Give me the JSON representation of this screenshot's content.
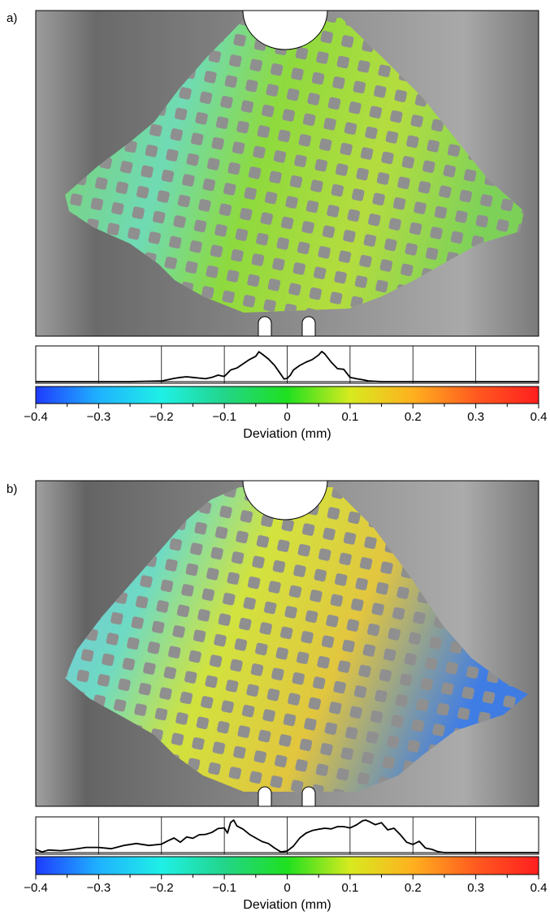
{
  "panels": [
    {
      "label": "a)",
      "axis_title": "Deviation (mm)",
      "tick_labels": [
        "−0.4",
        "−0.3",
        "−0.2",
        "−0.1",
        "0",
        "0.1",
        "0.2",
        "0.3",
        "0.4"
      ]
    },
    {
      "label": "b)",
      "axis_title": "Deviation (mm)",
      "tick_labels": [
        "−0.4",
        "−0.3",
        "−0.2",
        "−0.1",
        "0",
        "0.1",
        "0.2",
        "0.3",
        "0.4"
      ]
    }
  ],
  "colorscale": {
    "stops": [
      "#1f3bff",
      "#1fb2ff",
      "#1ff0e6",
      "#22d58a",
      "#1fe01f",
      "#d7ea1f",
      "#ffb01f",
      "#ff5a1f",
      "#ff1f1f"
    ],
    "min": -0.4,
    "max": 0.4
  },
  "chart_data": [
    {
      "type": "line",
      "description_source": "distribution histogram for panel a",
      "xlabel": "Deviation (mm)",
      "xlim": [
        -0.4,
        0.4
      ],
      "ylim": [
        0,
        1
      ],
      "grid": true,
      "x": [
        -0.4,
        -0.3,
        -0.25,
        -0.2,
        -0.19,
        -0.18,
        -0.17,
        -0.16,
        -0.15,
        -0.14,
        -0.13,
        -0.12,
        -0.11,
        -0.1,
        -0.09,
        -0.08,
        -0.07,
        -0.06,
        -0.05,
        -0.045,
        -0.04,
        -0.03,
        -0.02,
        -0.01,
        -0.005,
        0,
        0.005,
        0.01,
        0.02,
        0.03,
        0.04,
        0.05,
        0.055,
        0.06,
        0.07,
        0.08,
        0.09,
        0.1,
        0.11,
        0.12,
        0.13,
        0.15,
        0.2,
        0.3,
        0.4
      ],
      "y": [
        0.0,
        0.0,
        0.0,
        0.02,
        0.06,
        0.1,
        0.13,
        0.15,
        0.13,
        0.11,
        0.09,
        0.13,
        0.2,
        0.16,
        0.36,
        0.42,
        0.55,
        0.68,
        0.78,
        0.92,
        0.85,
        0.7,
        0.5,
        0.22,
        0.08,
        0.1,
        0.2,
        0.36,
        0.5,
        0.6,
        0.68,
        0.82,
        0.93,
        0.85,
        0.6,
        0.4,
        0.38,
        0.13,
        0.09,
        0.06,
        0.02,
        0.0,
        0.0,
        0.0,
        0.0
      ]
    },
    {
      "type": "line",
      "description_source": "distribution histogram for panel b",
      "xlabel": "Deviation (mm)",
      "xlim": [
        -0.4,
        0.4
      ],
      "ylim": [
        0,
        1
      ],
      "grid": true,
      "x": [
        -0.4,
        -0.39,
        -0.38,
        -0.36,
        -0.34,
        -0.32,
        -0.3,
        -0.28,
        -0.26,
        -0.24,
        -0.22,
        -0.2,
        -0.19,
        -0.18,
        -0.17,
        -0.16,
        -0.15,
        -0.14,
        -0.13,
        -0.12,
        -0.11,
        -0.1,
        -0.095,
        -0.09,
        -0.085,
        -0.08,
        -0.07,
        -0.06,
        -0.05,
        -0.04,
        -0.03,
        -0.02,
        -0.01,
        0,
        0.01,
        0.02,
        0.03,
        0.04,
        0.05,
        0.06,
        0.07,
        0.08,
        0.09,
        0.1,
        0.11,
        0.12,
        0.125,
        0.13,
        0.14,
        0.15,
        0.16,
        0.17,
        0.18,
        0.19,
        0.2,
        0.21,
        0.22,
        0.23,
        0.24,
        0.25,
        0.3,
        0.4
      ],
      "y": [
        0.1,
        0.02,
        0.08,
        0.06,
        0.1,
        0.16,
        0.16,
        0.12,
        0.22,
        0.28,
        0.22,
        0.26,
        0.36,
        0.45,
        0.32,
        0.48,
        0.44,
        0.55,
        0.56,
        0.62,
        0.74,
        0.76,
        0.6,
        0.93,
        1.0,
        0.82,
        0.72,
        0.56,
        0.45,
        0.34,
        0.28,
        0.14,
        0.02,
        0.05,
        0.2,
        0.45,
        0.6,
        0.68,
        0.72,
        0.75,
        0.73,
        0.8,
        0.8,
        0.76,
        0.85,
        0.98,
        1.0,
        0.96,
        0.86,
        0.92,
        0.7,
        0.75,
        0.55,
        0.32,
        0.25,
        0.35,
        0.14,
        0.1,
        0.03,
        0.0,
        0.0,
        0.0
      ]
    }
  ]
}
